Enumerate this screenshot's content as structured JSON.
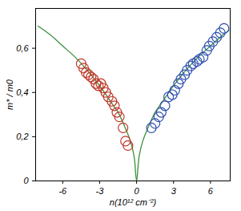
{
  "chart_data": {
    "type": "scatter",
    "x_label": "n(10¹² cm⁻²)",
    "y_label": "m* / m0",
    "xlim": [
      -8.2,
      7.6
    ],
    "ylim": [
      0,
      0.78
    ],
    "xticks": [
      -6,
      -3,
      0,
      3,
      6
    ],
    "yticks": [
      0,
      {
        "value": 0.2,
        "label": "0,2"
      },
      {
        "value": 0.4,
        "label": "0,4"
      },
      {
        "value": 0.6,
        "label": "0,6"
      }
    ],
    "grid": false,
    "series": [
      {
        "type": "line",
        "color": "#3a8f3a",
        "line_style": "solid",
        "x": [
          -8,
          -7,
          -6,
          -5,
          -4,
          -3,
          -2,
          -1.5,
          -1,
          -0.5,
          -0.2,
          0,
          0.2,
          0.5,
          1,
          1.5,
          2,
          3,
          4,
          5,
          6,
          7,
          7.5
        ],
        "values": [
          0.7,
          0.66,
          0.61,
          0.56,
          0.5,
          0.43,
          0.35,
          0.31,
          0.25,
          0.18,
          0.11,
          0,
          0.11,
          0.18,
          0.25,
          0.31,
          0.35,
          0.43,
          0.5,
          0.56,
          0.61,
          0.66,
          0.68
        ]
      },
      {
        "type": "scatter",
        "color": "#c0392b",
        "marker": "circle",
        "x": [
          -4.5,
          -4.3,
          -4.1,
          -3.9,
          -3.7,
          -3.5,
          -3.3,
          -3.1,
          -2.9,
          -2.7,
          -2.5,
          -2.3,
          -2.0,
          -1.8,
          -1.6,
          -1.4,
          -1.1,
          -0.9,
          -0.7
        ],
        "values": [
          0.53,
          0.51,
          0.49,
          0.48,
          0.47,
          0.46,
          0.44,
          0.43,
          0.44,
          0.42,
          0.4,
          0.38,
          0.36,
          0.34,
          0.31,
          0.29,
          0.24,
          0.18,
          0.16
        ]
      },
      {
        "type": "scatter",
        "color": "#3050b0",
        "marker": "circle",
        "x": [
          1.2,
          1.5,
          1.8,
          2.0,
          2.3,
          2.6,
          2.9,
          3.1,
          3.4,
          3.6,
          3.9,
          4.1,
          4.4,
          4.6,
          4.9,
          5.1,
          5.4,
          5.7,
          5.9,
          6.2,
          6.5,
          6.8,
          7.1
        ],
        "values": [
          0.24,
          0.26,
          0.29,
          0.31,
          0.34,
          0.38,
          0.39,
          0.41,
          0.44,
          0.46,
          0.48,
          0.5,
          0.52,
          0.53,
          0.54,
          0.55,
          0.56,
          0.59,
          0.61,
          0.63,
          0.65,
          0.67,
          0.69
        ]
      }
    ]
  }
}
